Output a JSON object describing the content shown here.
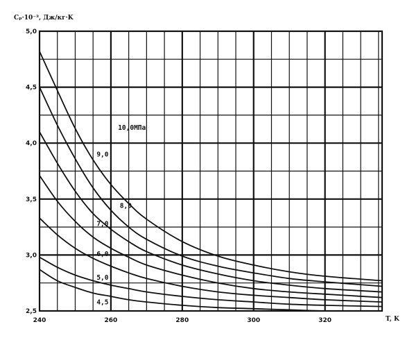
{
  "chart_data": {
    "type": "line",
    "title": "",
    "ylabel": "Cₚ·10⁻³, Дж/кг·K",
    "xlabel": "T, K",
    "xlim": [
      240,
      336
    ],
    "ylim": [
      2.5,
      5.0
    ],
    "x_ticks": [
      "240",
      "260",
      "280",
      "300",
      "320"
    ],
    "y_ticks": [
      "2,5",
      "3,0",
      "3,5",
      "4,0",
      "4,5",
      "5,0"
    ],
    "grid": true,
    "series": [
      {
        "name": "4,5",
        "x": [
          240,
          245,
          250,
          255,
          260,
          265,
          270,
          280,
          290,
          300,
          310,
          320,
          336
        ],
        "y": [
          2.87,
          2.77,
          2.71,
          2.66,
          2.63,
          2.6,
          2.58,
          2.55,
          2.53,
          2.52,
          2.51,
          2.5,
          2.5
        ]
      },
      {
        "name": "5,0",
        "x": [
          240,
          245,
          250,
          255,
          260,
          265,
          270,
          280,
          290,
          300,
          310,
          320,
          336
        ],
        "y": [
          2.98,
          2.89,
          2.82,
          2.77,
          2.73,
          2.7,
          2.67,
          2.63,
          2.6,
          2.58,
          2.56,
          2.55,
          2.54
        ]
      },
      {
        "name": "6,0",
        "x": [
          240,
          245,
          250,
          255,
          260,
          265,
          270,
          280,
          290,
          300,
          310,
          320,
          336
        ],
        "y": [
          3.33,
          3.18,
          3.06,
          2.97,
          2.9,
          2.84,
          2.79,
          2.72,
          2.67,
          2.64,
          2.62,
          2.6,
          2.58
        ]
      },
      {
        "name": "7,0",
        "x": [
          240,
          245,
          250,
          255,
          260,
          265,
          270,
          280,
          290,
          300,
          310,
          320,
          336
        ],
        "y": [
          3.71,
          3.48,
          3.3,
          3.16,
          3.06,
          2.98,
          2.91,
          2.82,
          2.75,
          2.7,
          2.67,
          2.65,
          2.62
        ]
      },
      {
        "name": "8,0",
        "x": [
          240,
          245,
          250,
          255,
          260,
          265,
          270,
          280,
          290,
          300,
          310,
          320,
          336
        ],
        "y": [
          4.1,
          3.82,
          3.57,
          3.37,
          3.23,
          3.12,
          3.03,
          2.91,
          2.83,
          2.77,
          2.73,
          2.7,
          2.67
        ]
      },
      {
        "name": "9,0",
        "x": [
          240,
          245,
          250,
          255,
          260,
          265,
          270,
          280,
          290,
          300,
          310,
          320,
          336
        ],
        "y": [
          4.5,
          4.16,
          3.86,
          3.6,
          3.4,
          3.25,
          3.14,
          2.99,
          2.9,
          2.84,
          2.79,
          2.76,
          2.72
        ]
      },
      {
        "name": "10,0МПа",
        "x": [
          240,
          245,
          250,
          255,
          260,
          265,
          270,
          280,
          290,
          300,
          310,
          320,
          336
        ],
        "y": [
          4.82,
          4.47,
          4.13,
          3.85,
          3.63,
          3.46,
          3.32,
          3.12,
          2.99,
          2.91,
          2.85,
          2.81,
          2.77
        ]
      }
    ],
    "curve_labels": [
      {
        "text": "10,0МПа",
        "x": 262.0,
        "y": 4.12
      },
      {
        "text": "9,0",
        "x": 256.0,
        "y": 3.88
      },
      {
        "text": "8,0",
        "x": 262.5,
        "y": 3.42
      },
      {
        "text": "7,0",
        "x": 256.0,
        "y": 3.26
      },
      {
        "text": "6,0",
        "x": 256.0,
        "y": 2.99
      },
      {
        "text": "5,0",
        "x": 256.0,
        "y": 2.78
      },
      {
        "text": "4,5",
        "x": 256.0,
        "y": 2.56
      }
    ]
  }
}
